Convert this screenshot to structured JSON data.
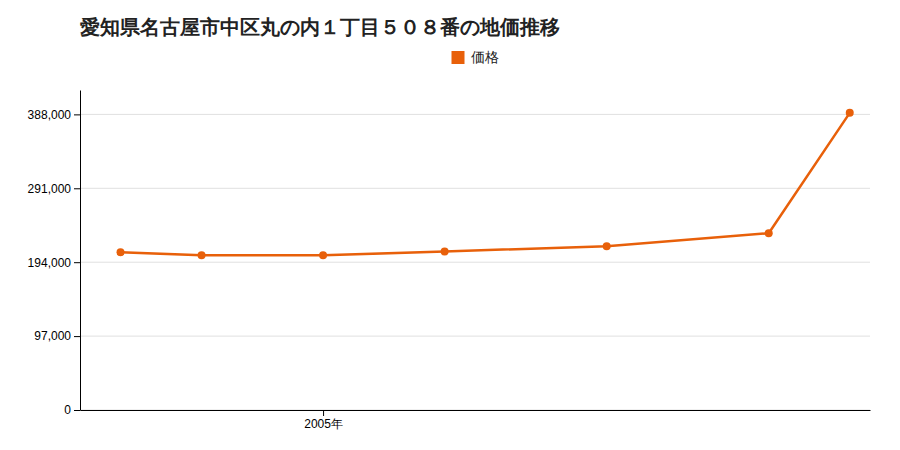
{
  "chart_data": {
    "type": "line",
    "title": "愛知県名古屋市中区丸の内１丁目５０８番の地価推移",
    "x": [
      2000,
      2002,
      2005,
      2008,
      2012,
      2016,
      2018
    ],
    "series": [
      {
        "name": "価格",
        "color": "#e8600a",
        "marker": "circle",
        "values": [
          207000,
          203000,
          203000,
          208000,
          215000,
          232000,
          390000
        ]
      }
    ],
    "xlim": [
      1999,
      2018.5
    ],
    "xticks": [
      {
        "value": 2005,
        "label": "2005年"
      }
    ],
    "ylim": [
      0,
      420000
    ],
    "yticks": [
      0,
      {
        "value": 97000,
        "label": "97,000"
      },
      {
        "value": 194000,
        "label": "194,000"
      },
      {
        "value": 291000,
        "label": "291,000"
      },
      {
        "value": 388000,
        "label": "388,000"
      }
    ],
    "grid": true,
    "legend": "top"
  }
}
